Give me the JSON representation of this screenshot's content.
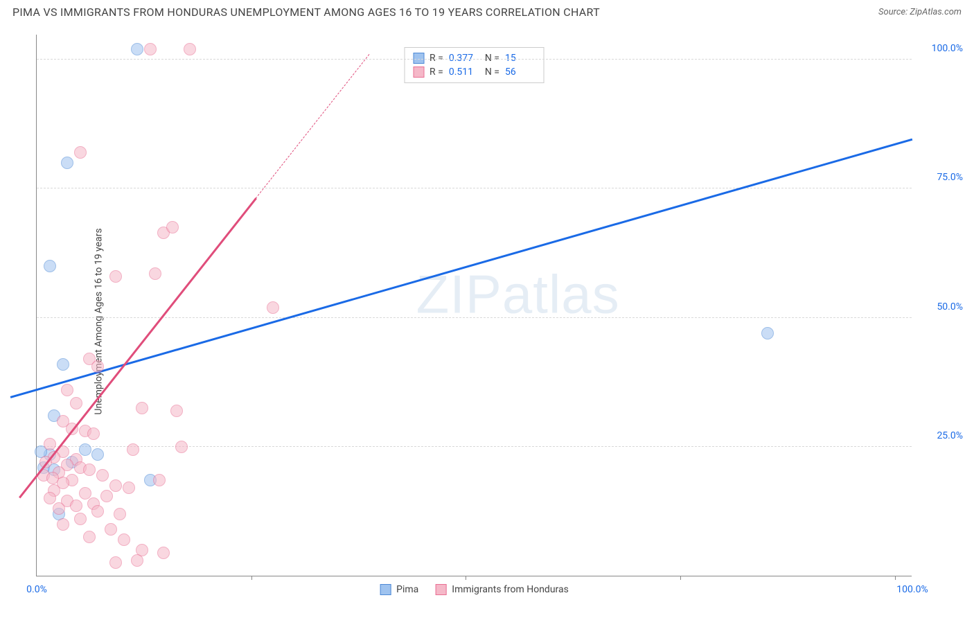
{
  "header": {
    "title": "PIMA VS IMMIGRANTS FROM HONDURAS UNEMPLOYMENT AMONG AGES 16 TO 19 YEARS CORRELATION CHART",
    "source": "Source: ZipAtlas.com"
  },
  "watermark": {
    "text1": "ZIP",
    "text2": "atlas"
  },
  "chart": {
    "type": "scatter",
    "xlim": [
      0,
      100
    ],
    "ylim": [
      0,
      105
    ],
    "background_color": "#ffffff",
    "grid_color": "#d8d8d8",
    "axis_color": "#888888",
    "ylabel": "Unemployment Among Ages 16 to 19 years",
    "label_fontsize": 14,
    "tick_fontsize": 14,
    "tick_color": "#1a6ae6",
    "y_ticks": [
      {
        "v": 25,
        "label": "25.0%"
      },
      {
        "v": 50,
        "label": "50.0%"
      },
      {
        "v": 75,
        "label": "75.0%"
      },
      {
        "v": 100,
        "label": "100.0%"
      }
    ],
    "x_ticks": [
      {
        "v": 0,
        "label": "0.0%"
      },
      {
        "v": 100,
        "label": "100.0%"
      }
    ],
    "x_tick_marks": [
      24.5,
      49,
      73.5,
      98
    ],
    "marker_radius": 9,
    "marker_border": 1.5,
    "marker_opacity": 0.55,
    "series": [
      {
        "id": "pima",
        "label": "Pima",
        "color_fill": "#9fc3ef",
        "color_border": "#4d89d6",
        "R": 0.377,
        "N": 15,
        "trend": {
          "x1": -3,
          "y1": 34.5,
          "x2": 100,
          "y2": 84.5,
          "color": "#1a6ae6",
          "width": 2.5,
          "dash": "solid"
        },
        "points": [
          {
            "x": 3.5,
            "y": 80.0
          },
          {
            "x": 11.5,
            "y": 102.0
          },
          {
            "x": 1.5,
            "y": 60.0
          },
          {
            "x": 3.0,
            "y": 41.0
          },
          {
            "x": 83.5,
            "y": 47.0
          },
          {
            "x": 2.0,
            "y": 31.0
          },
          {
            "x": 0.8,
            "y": 21.0
          },
          {
            "x": 1.5,
            "y": 23.5
          },
          {
            "x": 0.5,
            "y": 24.0
          },
          {
            "x": 2.0,
            "y": 20.5
          },
          {
            "x": 13.0,
            "y": 18.5
          },
          {
            "x": 5.5,
            "y": 24.5
          },
          {
            "x": 2.5,
            "y": 12.0
          },
          {
            "x": 7.0,
            "y": 23.5
          },
          {
            "x": 4.0,
            "y": 22.0
          }
        ]
      },
      {
        "id": "honduras",
        "label": "Immigrants from Honduras",
        "color_fill": "#f5b8c8",
        "color_border": "#e96f93",
        "R": 0.511,
        "N": 56,
        "trend": {
          "x1": -2,
          "y1": 15.0,
          "x2": 25.0,
          "y2": 73.0,
          "color": "#e04d7b",
          "width": 2.5,
          "dash": "solid"
        },
        "trend_ext": {
          "x1": 25.0,
          "y1": 73.0,
          "x2": 38.0,
          "y2": 101.0,
          "color": "#e04d7b",
          "width": 1.5,
          "dash": "dashed"
        },
        "points": [
          {
            "x": 13.0,
            "y": 102.0
          },
          {
            "x": 17.5,
            "y": 102.0
          },
          {
            "x": 5.0,
            "y": 82.0
          },
          {
            "x": 14.5,
            "y": 66.5
          },
          {
            "x": 15.5,
            "y": 67.5
          },
          {
            "x": 9.0,
            "y": 58.0
          },
          {
            "x": 13.5,
            "y": 58.5
          },
          {
            "x": 27.0,
            "y": 52.0
          },
          {
            "x": 6.0,
            "y": 42.0
          },
          {
            "x": 7.0,
            "y": 40.5
          },
          {
            "x": 3.5,
            "y": 36.0
          },
          {
            "x": 4.5,
            "y": 33.5
          },
          {
            "x": 12.0,
            "y": 32.5
          },
          {
            "x": 16.0,
            "y": 32.0
          },
          {
            "x": 3.0,
            "y": 30.0
          },
          {
            "x": 4.0,
            "y": 28.5
          },
          {
            "x": 5.5,
            "y": 28.0
          },
          {
            "x": 6.5,
            "y": 27.5
          },
          {
            "x": 1.5,
            "y": 25.5
          },
          {
            "x": 16.5,
            "y": 25.0
          },
          {
            "x": 11.0,
            "y": 24.5
          },
          {
            "x": 3.0,
            "y": 24.0
          },
          {
            "x": 2.0,
            "y": 23.0
          },
          {
            "x": 4.5,
            "y": 22.5
          },
          {
            "x": 1.0,
            "y": 22.0
          },
          {
            "x": 3.5,
            "y": 21.5
          },
          {
            "x": 5.0,
            "y": 21.0
          },
          {
            "x": 6.0,
            "y": 20.5
          },
          {
            "x": 2.5,
            "y": 20.0
          },
          {
            "x": 0.8,
            "y": 19.5
          },
          {
            "x": 7.5,
            "y": 19.5
          },
          {
            "x": 1.8,
            "y": 19.0
          },
          {
            "x": 4.0,
            "y": 18.5
          },
          {
            "x": 14.0,
            "y": 18.5
          },
          {
            "x": 3.0,
            "y": 18.0
          },
          {
            "x": 9.0,
            "y": 17.5
          },
          {
            "x": 10.5,
            "y": 17.0
          },
          {
            "x": 2.0,
            "y": 16.5
          },
          {
            "x": 5.5,
            "y": 16.0
          },
          {
            "x": 8.0,
            "y": 15.5
          },
          {
            "x": 1.5,
            "y": 15.0
          },
          {
            "x": 3.5,
            "y": 14.5
          },
          {
            "x": 6.5,
            "y": 14.0
          },
          {
            "x": 4.5,
            "y": 13.5
          },
          {
            "x": 2.5,
            "y": 13.0
          },
          {
            "x": 7.0,
            "y": 12.5
          },
          {
            "x": 9.5,
            "y": 12.0
          },
          {
            "x": 5.0,
            "y": 11.0
          },
          {
            "x": 3.0,
            "y": 10.0
          },
          {
            "x": 8.5,
            "y": 9.0
          },
          {
            "x": 6.0,
            "y": 7.5
          },
          {
            "x": 10.0,
            "y": 7.0
          },
          {
            "x": 12.0,
            "y": 5.0
          },
          {
            "x": 14.5,
            "y": 4.5
          },
          {
            "x": 11.5,
            "y": 3.0
          },
          {
            "x": 9.0,
            "y": 2.5
          }
        ]
      }
    ],
    "legend_top": {
      "border_color": "#cccccc",
      "rows": [
        {
          "swatch_fill": "#9fc3ef",
          "swatch_border": "#4d89d6",
          "r_label": "R =",
          "r_val": "0.377",
          "n_label": "N =",
          "n_val": "15"
        },
        {
          "swatch_fill": "#f5b8c8",
          "swatch_border": "#e96f93",
          "r_label": "R =",
          "r_val": "0.511",
          "n_label": "N =",
          "n_val": "56"
        }
      ]
    },
    "legend_bottom": {
      "items": [
        {
          "swatch_fill": "#9fc3ef",
          "swatch_border": "#4d89d6",
          "label": "Pima"
        },
        {
          "swatch_fill": "#f5b8c8",
          "swatch_border": "#e96f93",
          "label": "Immigrants from Honduras"
        }
      ]
    }
  }
}
